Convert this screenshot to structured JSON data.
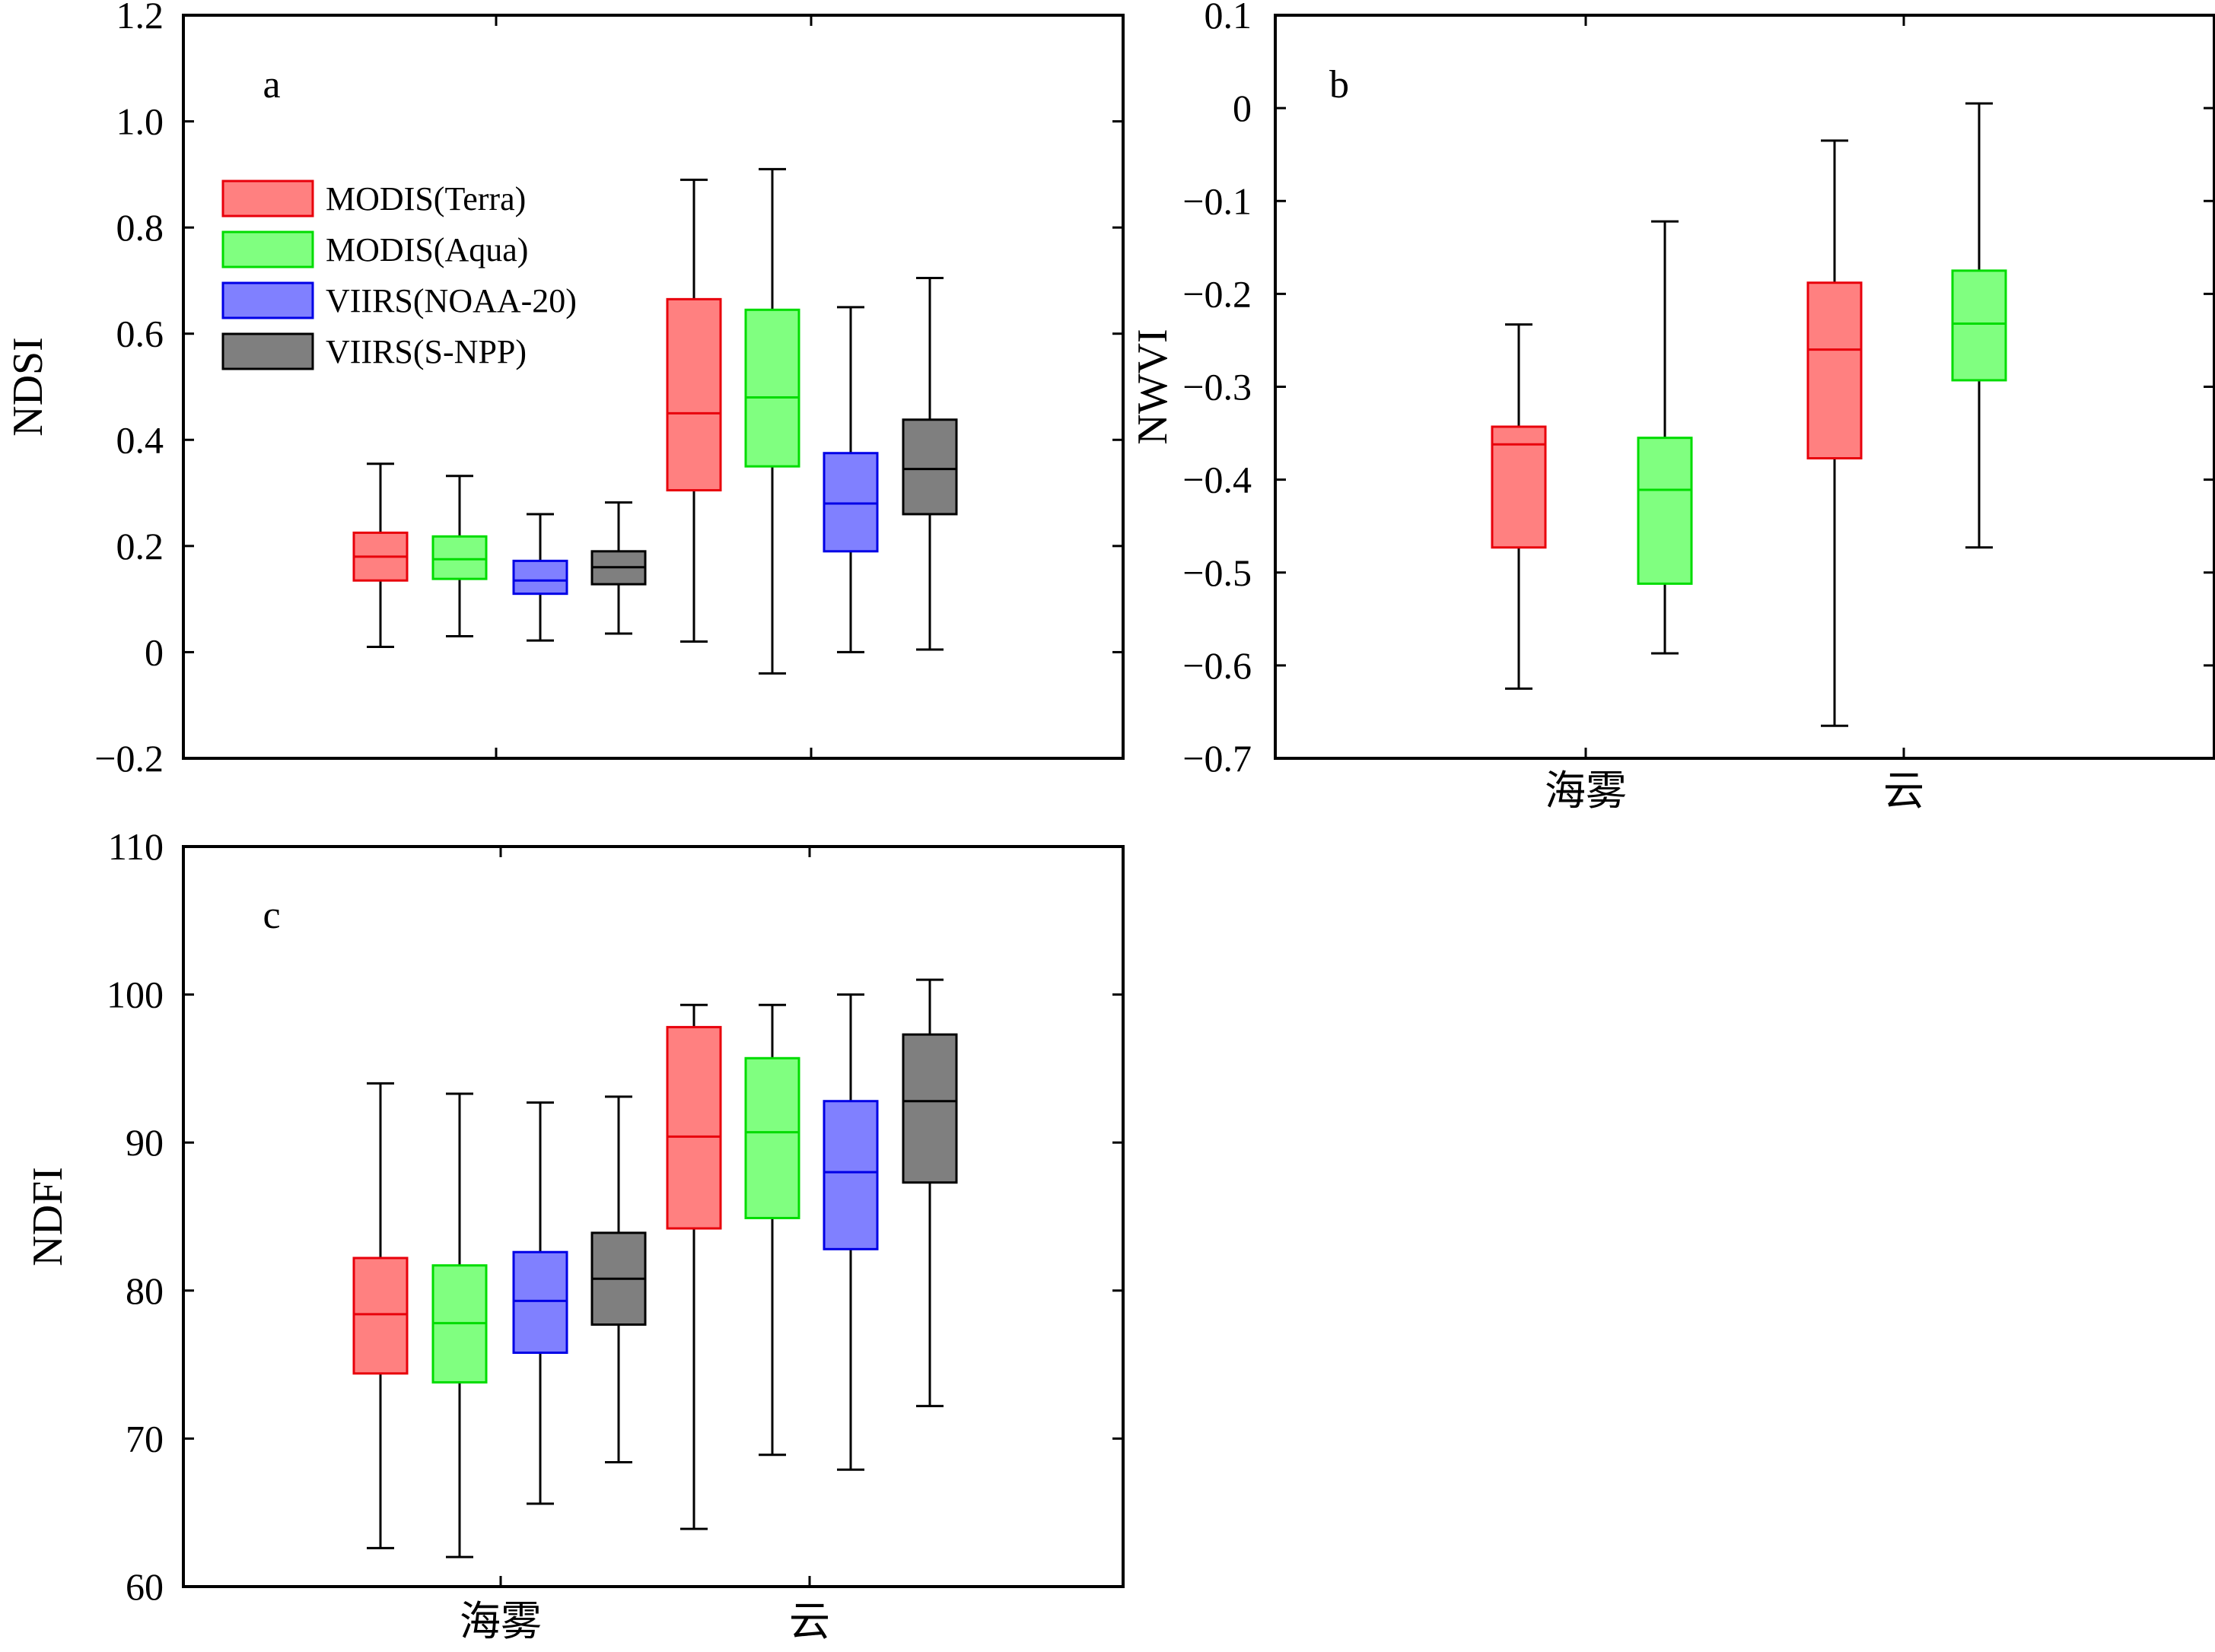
{
  "legend": [
    {
      "name": "MODIS(Terra)",
      "fill": "#ff8080",
      "stroke": "#e8000b"
    },
    {
      "name": "MODIS(Aqua)",
      "fill": "#80ff80",
      "stroke": "#00dc00"
    },
    {
      "name": "VIIRS(NOAA-20)",
      "fill": "#8080ff",
      "stroke": "#0000e6"
    },
    {
      "name": "VIIRS(S-NPP)",
      "fill": "#7f7f7f",
      "stroke": "#000000"
    }
  ],
  "chart_data": [
    {
      "type": "box",
      "panel_label": "a",
      "ylabel": "NDSI",
      "xlabel": "",
      "ylim": [
        -0.2,
        1.2
      ],
      "yticks": [
        -0.2,
        0,
        0.2,
        0.4,
        0.6,
        0.8,
        1.0,
        1.2
      ],
      "ytick_labels": [
        "−0.2",
        "0",
        "0.2",
        "0.4",
        "0.6",
        "0.8",
        "1.0",
        "1.2"
      ],
      "categories": [],
      "legend_position": "top-left",
      "series": [
        {
          "name": "MODIS(Terra)",
          "boxes": [
            {
              "min": 0.01,
              "q1": 0.135,
              "median": 0.18,
              "q3": 0.225,
              "max": 0.355
            },
            {
              "min": 0.02,
              "q1": 0.305,
              "median": 0.45,
              "q3": 0.665,
              "max": 0.89
            }
          ]
        },
        {
          "name": "MODIS(Aqua)",
          "boxes": [
            {
              "min": 0.03,
              "q1": 0.138,
              "median": 0.175,
              "q3": 0.218,
              "max": 0.332
            },
            {
              "min": -0.04,
              "q1": 0.35,
              "median": 0.48,
              "q3": 0.645,
              "max": 0.91
            }
          ]
        },
        {
          "name": "VIIRS(NOAA-20)",
          "boxes": [
            {
              "min": 0.022,
              "q1": 0.11,
              "median": 0.135,
              "q3": 0.172,
              "max": 0.26
            },
            {
              "min": 0.0,
              "q1": 0.19,
              "median": 0.28,
              "q3": 0.375,
              "max": 0.65
            }
          ]
        },
        {
          "name": "VIIRS(S-NPP)",
          "boxes": [
            {
              "min": 0.035,
              "q1": 0.128,
              "median": 0.16,
              "q3": 0.19,
              "max": 0.282
            },
            {
              "min": 0.005,
              "q1": 0.26,
              "median": 0.345,
              "q3": 0.438,
              "max": 0.705
            }
          ]
        }
      ]
    },
    {
      "type": "box",
      "panel_label": "b",
      "ylabel": "NWVI",
      "xlabel": "",
      "ylim": [
        -0.7,
        0.1
      ],
      "yticks": [
        -0.7,
        -0.6,
        -0.5,
        -0.4,
        -0.3,
        -0.2,
        -0.1,
        0,
        0.1
      ],
      "ytick_labels": [
        "−0.7",
        "−0.6",
        "−0.5",
        "−0.4",
        "−0.3",
        "−0.2",
        "−0.1",
        "0",
        "0.1"
      ],
      "categories": [
        "海雾",
        "云"
      ],
      "series": [
        {
          "name": "MODIS(Terra)",
          "boxes": [
            {
              "min": -0.625,
              "q1": -0.473,
              "median": -0.362,
              "q3": -0.343,
              "max": -0.233
            },
            {
              "min": -0.665,
              "q1": -0.377,
              "median": -0.26,
              "q3": -0.188,
              "max": -0.035
            }
          ]
        },
        {
          "name": "MODIS(Aqua)",
          "boxes": [
            {
              "min": -0.587,
              "q1": -0.512,
              "median": -0.411,
              "q3": -0.355,
              "max": -0.122
            },
            {
              "min": -0.473,
              "q1": -0.293,
              "median": -0.232,
              "q3": -0.175,
              "max": 0.005
            }
          ]
        }
      ]
    },
    {
      "type": "box",
      "panel_label": "c",
      "ylabel": "NDFI",
      "xlabel": "",
      "ylim": [
        60,
        110
      ],
      "yticks": [
        60,
        70,
        80,
        90,
        100,
        110
      ],
      "ytick_labels": [
        "60",
        "70",
        "80",
        "90",
        "100",
        "110"
      ],
      "categories": [
        "海雾",
        "云"
      ],
      "series": [
        {
          "name": "MODIS(Terra)",
          "boxes": [
            {
              "min": 62.6,
              "q1": 74.4,
              "median": 78.4,
              "q3": 82.2,
              "max": 94.0
            },
            {
              "min": 63.9,
              "q1": 84.2,
              "median": 90.4,
              "q3": 97.8,
              "max": 99.3
            }
          ]
        },
        {
          "name": "MODIS(Aqua)",
          "boxes": [
            {
              "min": 62.0,
              "q1": 73.8,
              "median": 77.8,
              "q3": 81.7,
              "max": 93.3
            },
            {
              "min": 68.9,
              "q1": 84.9,
              "median": 90.7,
              "q3": 95.7,
              "max": 99.3
            }
          ]
        },
        {
          "name": "VIIRS(NOAA-20)",
          "boxes": [
            {
              "min": 65.6,
              "q1": 75.8,
              "median": 79.3,
              "q3": 82.6,
              "max": 92.7
            },
            {
              "min": 67.9,
              "q1": 82.8,
              "median": 88.0,
              "q3": 92.8,
              "max": 100.0
            }
          ]
        },
        {
          "name": "VIIRS(S-NPP)",
          "boxes": [
            {
              "min": 68.4,
              "q1": 77.7,
              "median": 80.8,
              "q3": 83.9,
              "max": 93.1
            },
            {
              "min": 72.2,
              "q1": 87.3,
              "median": 92.8,
              "q3": 97.3,
              "max": 101.0
            }
          ]
        }
      ]
    }
  ]
}
